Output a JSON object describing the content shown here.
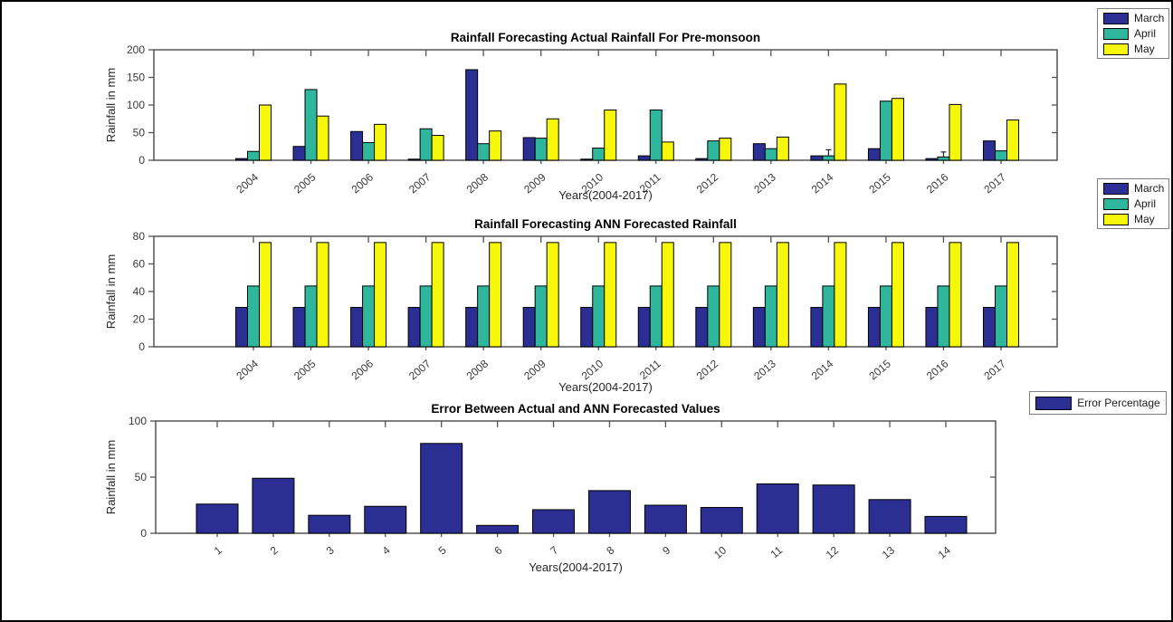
{
  "figure": {
    "background": "#ffffff",
    "frame_color": "#000000",
    "axis_color": "#545454",
    "tick_label_color": "#3a3a3a"
  },
  "colors": {
    "march": "#2B2E92",
    "april": "#2FB79E",
    "may": "#F6F70B",
    "error": "#2B2E92"
  },
  "legends": [
    {
      "items": [
        {
          "label": "March",
          "color": "#2B2E92"
        },
        {
          "label": "April",
          "color": "#2FB79E"
        },
        {
          "label": "May",
          "color": "#F6F70B"
        }
      ]
    },
    {
      "items": [
        {
          "label": "March",
          "color": "#2B2E92"
        },
        {
          "label": "April",
          "color": "#2FB79E"
        },
        {
          "label": "May",
          "color": "#F6F70B"
        }
      ]
    },
    {
      "items": [
        {
          "label": "Error Percentage",
          "color": "#2B2E92"
        }
      ]
    }
  ],
  "chart_data": [
    {
      "type": "bar",
      "title": "Rainfall Forecasting Actual Rainfall For Pre-monsoon",
      "xlabel": "Years(2004-2017)",
      "ylabel": "Rainfall in mm",
      "categories": [
        "2004",
        "2005",
        "2006",
        "2007",
        "2008",
        "2009",
        "2010",
        "2011",
        "2012",
        "2013",
        "2014",
        "2015",
        "2016",
        "2017"
      ],
      "series": [
        {
          "name": "March",
          "color": "#2B2E92",
          "values": [
            3,
            25,
            52,
            2,
            164,
            41,
            2,
            8,
            3,
            30,
            8,
            21,
            3,
            35
          ]
        },
        {
          "name": "April",
          "color": "#2FB79E",
          "values": [
            16,
            128,
            32,
            57,
            30,
            40,
            22,
            91,
            35,
            21,
            8,
            107,
            6,
            17
          ]
        },
        {
          "name": "May",
          "color": "#F6F70B",
          "values": [
            100,
            80,
            65,
            45,
            53,
            75,
            91,
            33,
            40,
            42,
            138,
            112,
            101,
            73
          ]
        }
      ],
      "whiskers": [
        {
          "series": 1,
          "index": 10,
          "from": 8,
          "to": 19
        },
        {
          "series": 1,
          "index": 12,
          "from": 6,
          "to": 15
        }
      ],
      "ylim": [
        0,
        200
      ],
      "yticks": [
        0,
        50,
        100,
        150,
        200
      ],
      "grid": false,
      "legend_position": "top-right-outside"
    },
    {
      "type": "bar",
      "title": "Rainfall Forecasting ANN Forecasted Rainfall",
      "xlabel": "Years(2004-2017)",
      "ylabel": "Rainfall in mm",
      "categories": [
        "2004",
        "2005",
        "2006",
        "2007",
        "2008",
        "2009",
        "2010",
        "2011",
        "2012",
        "2013",
        "2014",
        "2015",
        "2016",
        "2017"
      ],
      "series": [
        {
          "name": "March",
          "color": "#2B2E92",
          "values": [
            28.5,
            28.5,
            28.5,
            28.5,
            28.5,
            28.5,
            28.5,
            28.5,
            28.5,
            28.5,
            28.5,
            28.5,
            28.5,
            28.5
          ]
        },
        {
          "name": "April",
          "color": "#2FB79E",
          "values": [
            44,
            44,
            44,
            44,
            44,
            44,
            44,
            44,
            44,
            44,
            44,
            44,
            44,
            44
          ]
        },
        {
          "name": "May",
          "color": "#F6F70B",
          "values": [
            75.5,
            75.5,
            75.5,
            75.5,
            75.5,
            75.5,
            75.5,
            75.5,
            75.5,
            75.5,
            75.5,
            75.5,
            75.5,
            75.5
          ]
        }
      ],
      "whiskers": [],
      "ylim": [
        0,
        80
      ],
      "yticks": [
        0,
        20,
        40,
        60,
        80
      ],
      "grid": false,
      "legend_position": "top-right-outside"
    },
    {
      "type": "bar",
      "title": "Error Between Actual and ANN Forecasted Values",
      "xlabel": "Years(2004-2017)",
      "ylabel": "Rainfall in mm",
      "categories": [
        "1",
        "2",
        "3",
        "4",
        "5",
        "6",
        "7",
        "8",
        "9",
        "10",
        "11",
        "12",
        "13",
        "14"
      ],
      "series": [
        {
          "name": "Error Percentage",
          "color": "#2B2E92",
          "values": [
            26,
            49,
            16,
            24,
            80,
            7,
            21,
            38,
            25,
            23,
            44,
            43,
            30,
            15
          ]
        }
      ],
      "whiskers": [],
      "ylim": [
        0,
        100
      ],
      "yticks": [
        0,
        50,
        100
      ],
      "grid": false,
      "legend_position": "top-right-outside"
    }
  ]
}
